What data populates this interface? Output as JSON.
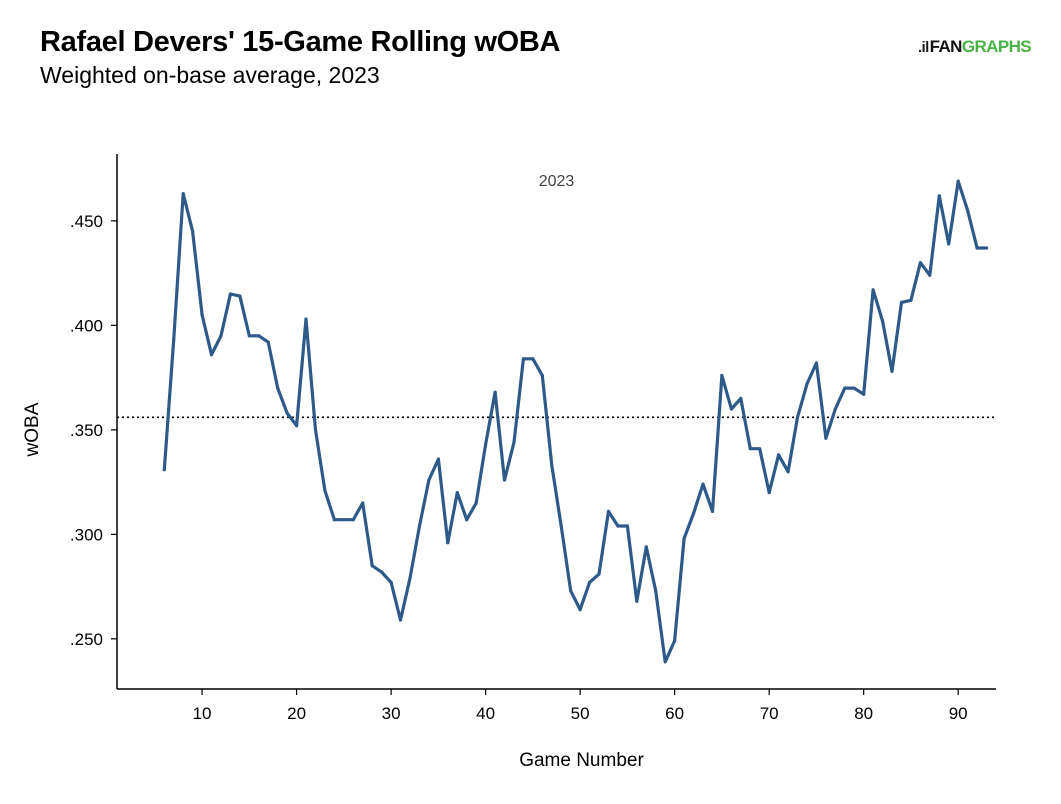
{
  "header": {
    "title": "Rafael Devers' 15-Game Rolling wOBA",
    "subtitle": "Weighted on-base average, 2023",
    "logo_mark": ".il",
    "logo_fan": "FAN",
    "logo_graphs": "GRAPHS"
  },
  "colors": {
    "line": "#2e5a8a",
    "logo_green": "#4ab144"
  },
  "chart_data": {
    "type": "line",
    "panel_label": "2023",
    "xlabel": "Game Number",
    "ylabel": "wOBA",
    "xlim": [
      1,
      94
    ],
    "ylim": [
      0.226,
      0.482
    ],
    "x_ticks": [
      10,
      20,
      30,
      40,
      50,
      60,
      70,
      80,
      90
    ],
    "x_tick_labels": [
      "10",
      "20",
      "30",
      "40",
      "50",
      "60",
      "70",
      "80",
      "90"
    ],
    "y_ticks": [
      0.25,
      0.3,
      0.35,
      0.4,
      0.45
    ],
    "y_tick_labels": [
      ".250",
      ".300",
      ".350",
      ".400",
      ".450"
    ],
    "reference_line": {
      "y": 0.356,
      "style": "dotted"
    },
    "grid": false,
    "series": [
      {
        "x": [
          6,
          7,
          8,
          9,
          10,
          11,
          12,
          13,
          14,
          15,
          16,
          17,
          18,
          19,
          20,
          21,
          22,
          23,
          24,
          25,
          26,
          27,
          28,
          29,
          30,
          31,
          32,
          33,
          34,
          35,
          36,
          37,
          38,
          39,
          40,
          41,
          42,
          43,
          44,
          45,
          46,
          47,
          48,
          49,
          50,
          51,
          52,
          53,
          54,
          55,
          56,
          57,
          58,
          59,
          60,
          61,
          62,
          63,
          64,
          65,
          66,
          67,
          68,
          69,
          70,
          71,
          72,
          73,
          74,
          75,
          76,
          77,
          78,
          79,
          80,
          81,
          82,
          83,
          84,
          85,
          86,
          87,
          88,
          89,
          90,
          91,
          92,
          93
        ],
        "y": [
          0.331,
          0.393,
          0.463,
          0.445,
          0.405,
          0.386,
          0.395,
          0.415,
          0.414,
          0.395,
          0.395,
          0.392,
          0.37,
          0.358,
          0.352,
          0.403,
          0.35,
          0.321,
          0.307,
          0.307,
          0.307,
          0.315,
          0.285,
          0.282,
          0.277,
          0.259,
          0.279,
          0.304,
          0.326,
          0.336,
          0.296,
          0.32,
          0.307,
          0.315,
          0.343,
          0.368,
          0.326,
          0.344,
          0.384,
          0.384,
          0.376,
          0.333,
          0.304,
          0.273,
          0.264,
          0.277,
          0.281,
          0.311,
          0.304,
          0.304,
          0.268,
          0.294,
          0.273,
          0.239,
          0.249,
          0.298,
          0.31,
          0.324,
          0.311,
          0.376,
          0.36,
          0.365,
          0.341,
          0.341,
          0.32,
          0.338,
          0.33,
          0.356,
          0.372,
          0.382,
          0.346,
          0.36,
          0.37,
          0.37,
          0.367,
          0.417,
          0.402,
          0.378,
          0.411,
          0.412,
          0.43,
          0.424,
          0.462,
          0.439,
          0.469,
          0.455,
          0.437,
          0.437
        ]
      }
    ]
  }
}
